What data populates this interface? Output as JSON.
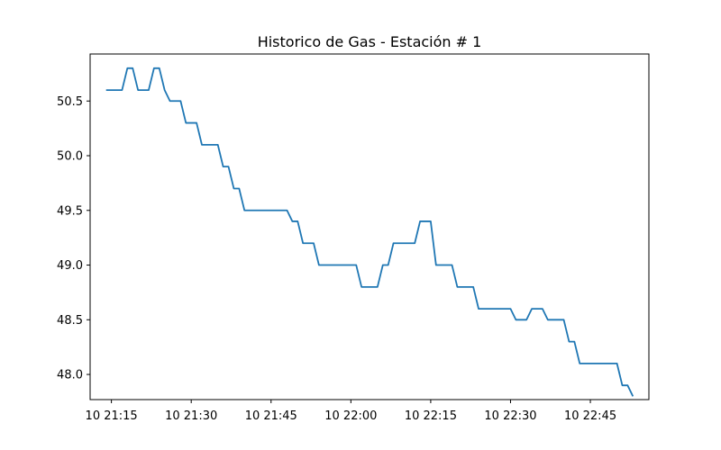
{
  "chart_data": {
    "type": "line",
    "title": "Historico de Gas - Estación # 1",
    "xlabel": "",
    "ylabel": "",
    "xlim": [
      "10 21:11",
      "10 22:56"
    ],
    "ylim": [
      47.77,
      50.93
    ],
    "x_ticks": [
      "10 21:15",
      "10 21:30",
      "10 21:45",
      "10 22:00",
      "10 22:15",
      "10 22:30",
      "10 22:45"
    ],
    "y_ticks": [
      48.0,
      48.5,
      49.0,
      49.5,
      50.0,
      50.5
    ],
    "grid": false,
    "legend": "none",
    "series": [
      {
        "color": "#1f77b4",
        "x": [
          "10 21:14",
          "10 21:17",
          "10 21:18",
          "10 21:19",
          "10 21:20",
          "10 21:22",
          "10 21:23",
          "10 21:24",
          "10 21:25",
          "10 21:26",
          "10 21:28",
          "10 21:29",
          "10 21:31",
          "10 21:32",
          "10 21:35",
          "10 21:36",
          "10 21:37",
          "10 21:38",
          "10 21:39",
          "10 21:40",
          "10 21:48",
          "10 21:49",
          "10 21:50",
          "10 21:51",
          "10 21:53",
          "10 21:54",
          "10 22:01",
          "10 22:02",
          "10 22:05",
          "10 22:06",
          "10 22:07",
          "10 22:08",
          "10 22:12",
          "10 22:13",
          "10 22:15",
          "10 22:16",
          "10 22:19",
          "10 22:20",
          "10 22:23",
          "10 22:24",
          "10 22:30",
          "10 22:31",
          "10 22:33",
          "10 22:34",
          "10 22:36",
          "10 22:37",
          "10 22:40",
          "10 22:41",
          "10 22:42",
          "10 22:43",
          "10 22:50",
          "10 22:51",
          "10 22:52",
          "10 22:53"
        ],
        "y": [
          50.6,
          50.6,
          50.8,
          50.8,
          50.6,
          50.6,
          50.8,
          50.8,
          50.6,
          50.5,
          50.5,
          50.3,
          50.3,
          50.1,
          50.1,
          49.9,
          49.9,
          49.7,
          49.7,
          49.5,
          49.5,
          49.4,
          49.4,
          49.2,
          49.2,
          49.0,
          49.0,
          48.8,
          48.8,
          49.0,
          49.0,
          49.2,
          49.2,
          49.4,
          49.4,
          49.0,
          49.0,
          48.8,
          48.8,
          48.6,
          48.6,
          48.5,
          48.5,
          48.6,
          48.6,
          48.5,
          48.5,
          48.3,
          48.3,
          48.1,
          48.1,
          47.9,
          47.9,
          47.8
        ]
      }
    ]
  }
}
